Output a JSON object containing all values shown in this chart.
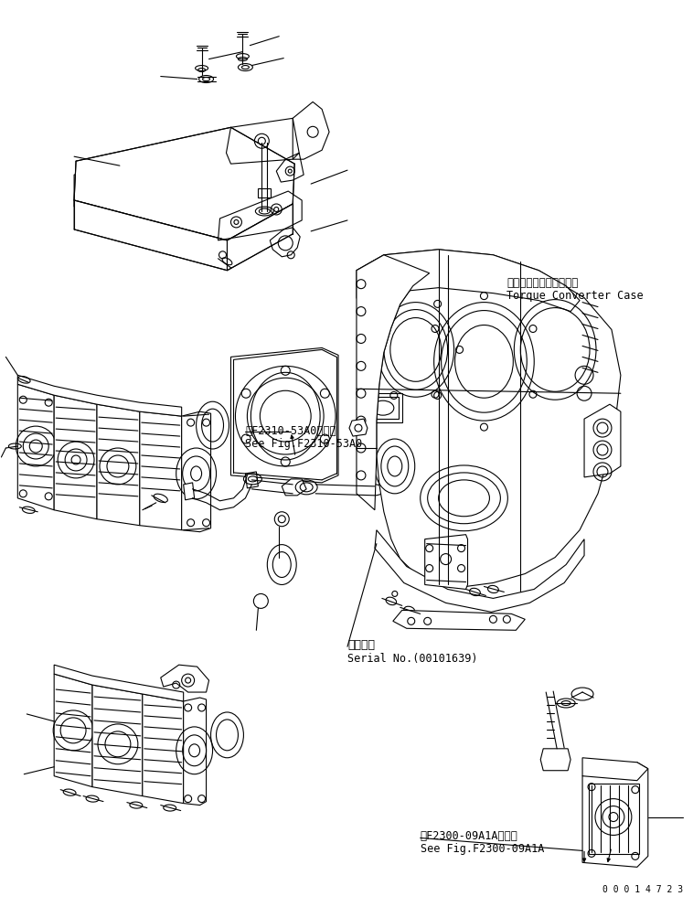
{
  "bg_color": "#ffffff",
  "line_color": "#000000",
  "fig_width": 7.58,
  "fig_height": 9.92,
  "dpi": 100,
  "ann_torque_jp": "トルクコンバータケース",
  "ann_torque_en": "Torque Converter Case",
  "ann_fig1_jp": "第F2310-53A0図参照",
  "ann_fig1_en": "See Fig.F2310-53A0",
  "ann_serial_jp": "適用号機",
  "ann_serial_en": "Serial No.(00101639)",
  "ann_fig2_jp": "第F2300-09A1A図参照",
  "ann_fig2_en": "See Fig.F2300-09A1A",
  "doc_number": "0 0 0 1 4 7 2 3"
}
